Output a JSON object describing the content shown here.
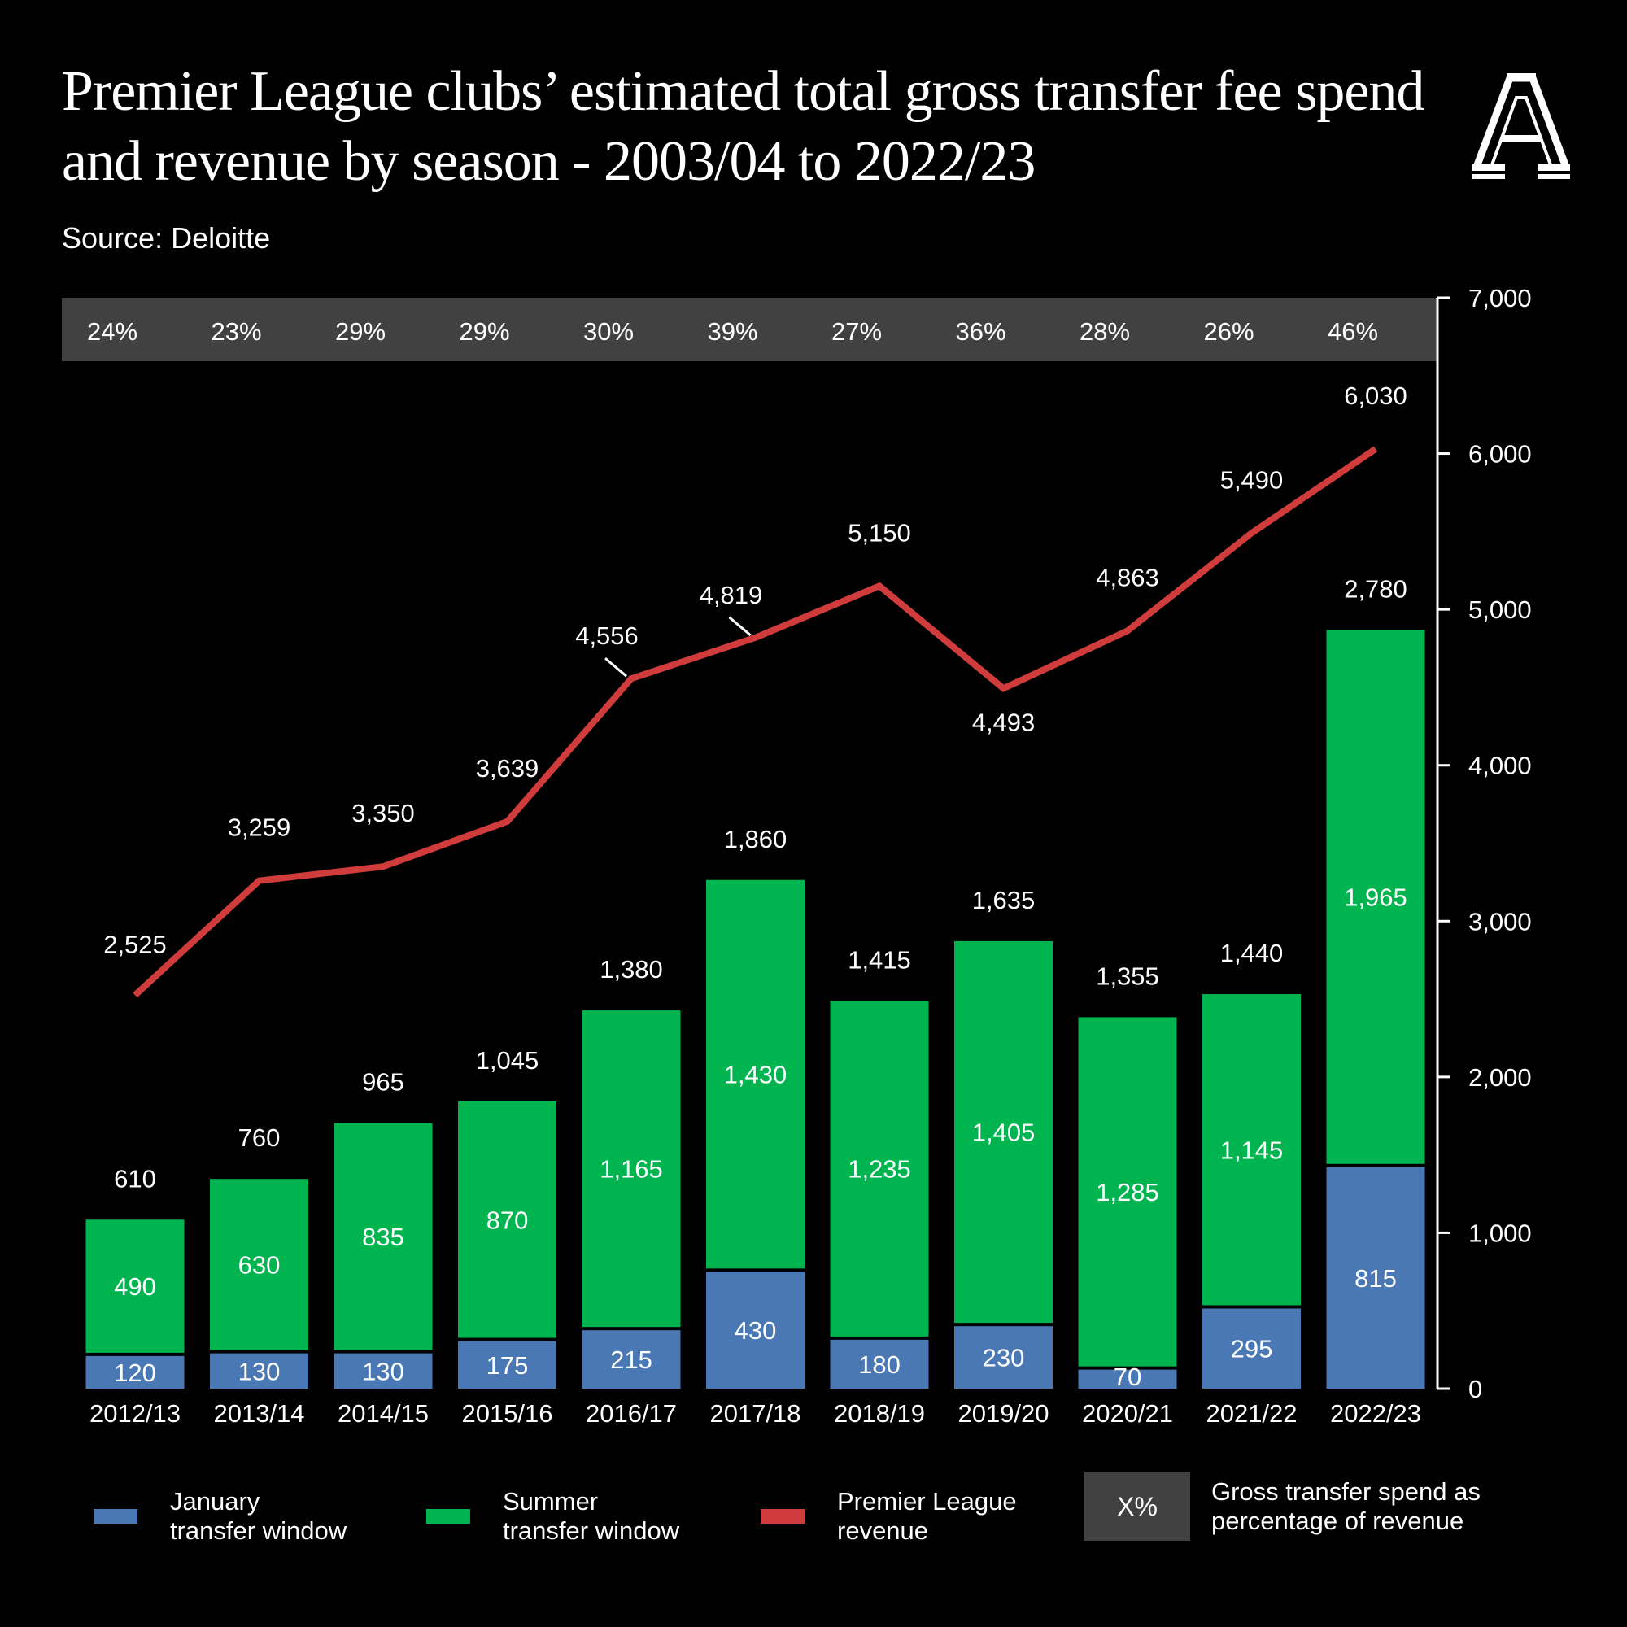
{
  "header": {
    "title": "Premier League clubs’ estimated total gross transfer fee spend and revenue by season - 2003/04 to 2022/23",
    "source": "Source: Deloitte",
    "logo": "athletic-a-logo"
  },
  "colors": {
    "background": "#000000",
    "january": "#4a78b5",
    "summer": "#00b450",
    "revenue": "#d03b3b",
    "pct_band": "#414141"
  },
  "legend": {
    "january": "January\ntransfer window",
    "summer": "Summer\ntransfer window",
    "revenue": "Premier League\nrevenue",
    "pct_box": "X%",
    "pct_text": "Gross transfer spend as\npercentage of revenue"
  },
  "chart_data": {
    "type": "bar",
    "title": "Premier League clubs’ estimated total gross transfer fee spend and revenue by season - 2003/04 to 2022/23",
    "xlabel": "",
    "ylabel": "",
    "categories": [
      "2012/13",
      "2013/14",
      "2014/15",
      "2015/16",
      "2016/17",
      "2017/18",
      "2018/19",
      "2019/20",
      "2020/21",
      "2021/22",
      "2022/23"
    ],
    "series": [
      {
        "name": "January transfer window",
        "kind": "stacked-bar",
        "values": [
          120,
          130,
          130,
          175,
          215,
          430,
          180,
          230,
          70,
          295,
          815
        ]
      },
      {
        "name": "Summer transfer window",
        "kind": "stacked-bar",
        "values": [
          490,
          630,
          835,
          870,
          1165,
          1430,
          1235,
          1405,
          1285,
          1145,
          1965
        ]
      },
      {
        "name": "Premier League revenue",
        "kind": "line",
        "values": [
          2525,
          3259,
          3350,
          3639,
          4556,
          4819,
          5150,
          4493,
          4863,
          5490,
          6030
        ]
      }
    ],
    "totals": [
      610,
      760,
      965,
      1045,
      1380,
      1860,
      1415,
      1635,
      1355,
      1440,
      2780
    ],
    "percent_of_revenue": [
      "24%",
      "23%",
      "29%",
      "29%",
      "30%",
      "39%",
      "27%",
      "36%",
      "28%",
      "26%",
      "46%"
    ],
    "y_axis": {
      "position": "right",
      "ticks": [
        "0",
        "1,000",
        "2,000",
        "3,000",
        "4,000",
        "5,000",
        "6,000",
        "7,000"
      ],
      "ylim": [
        0,
        7000
      ]
    },
    "grid": false,
    "legend_position": "bottom"
  }
}
